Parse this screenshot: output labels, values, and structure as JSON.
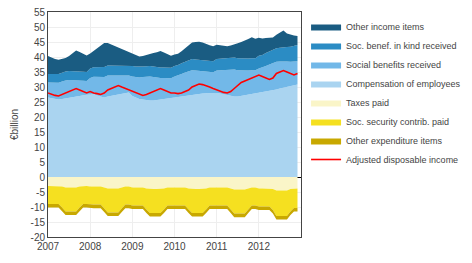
{
  "chart_data": {
    "type": "area",
    "stacked": true,
    "grid": true,
    "legend": "right",
    "ylabel": "€billion",
    "xlim": [
      2007,
      2013
    ],
    "xticks": [
      2007,
      2008,
      2009,
      2010,
      2011,
      2012
    ],
    "ylim": [
      -20,
      55
    ],
    "yticks": [
      -20,
      -15,
      -10,
      -5,
      0,
      5,
      10,
      15,
      20,
      25,
      30,
      35,
      40,
      45,
      50,
      55
    ],
    "x": [
      2007,
      2007.0833333333,
      2007.1666666667,
      2007.25,
      2007.3333333333,
      2007.4166666667,
      2007.5,
      2007.5833333333,
      2007.6666666667,
      2007.75,
      2007.8333333333,
      2007.9166666667,
      2008,
      2008.0833333333,
      2008.1666666667,
      2008.25,
      2008.3333333333,
      2008.4166666667,
      2008.5,
      2008.5833333333,
      2008.6666666667,
      2008.75,
      2008.8333333333,
      2008.9166666667,
      2009,
      2009.0833333333,
      2009.1666666667,
      2009.25,
      2009.3333333333,
      2009.4166666667,
      2009.5,
      2009.5833333333,
      2009.6666666667,
      2009.75,
      2009.8333333333,
      2009.9166666667,
      2010,
      2010.0833333333,
      2010.1666666667,
      2010.25,
      2010.3333333333,
      2010.4166666667,
      2010.5,
      2010.5833333333,
      2010.6666666667,
      2010.75,
      2010.8333333333,
      2010.9166666667,
      2011,
      2011.0833333333,
      2011.1666666667,
      2011.25,
      2011.3333333333,
      2011.4166666667,
      2011.5,
      2011.5833333333,
      2011.6666666667,
      2011.75,
      2011.8333333333,
      2011.9166666667,
      2012,
      2012.0833333333,
      2012.1666666667,
      2012.25,
      2012.3333333333,
      2012.4166666667,
      2012.5,
      2012.5833333333,
      2012.6666666667,
      2012.75,
      2012.8333333333,
      2012.9166666667
    ],
    "series": [
      {
        "name": "Compensation of employees",
        "color": "#aad4f0",
        "values": [
          26.5,
          26.2,
          26.0,
          25.8,
          26.0,
          26.2,
          26.5,
          26.8,
          27.0,
          27.2,
          27.3,
          27.4,
          27.5,
          27.6,
          27.2,
          26.8,
          26.5,
          26.8,
          27.0,
          27.2,
          27.5,
          27.8,
          28.0,
          28.2,
          27.0,
          26.5,
          26.0,
          25.8,
          25.6,
          25.5,
          25.5,
          25.6,
          25.8,
          26.0,
          26.2,
          26.3,
          26.5,
          26.6,
          26.8,
          27.0,
          27.2,
          27.4,
          27.5,
          27.6,
          27.8,
          27.9,
          28.0,
          28.1,
          28.0,
          27.8,
          27.5,
          27.2,
          27.0,
          26.8,
          26.8,
          27.0,
          27.2,
          27.5,
          27.8,
          28.0,
          28.2,
          28.3,
          28.5,
          28.7,
          29.0,
          29.2,
          29.5,
          29.8,
          30.0,
          30.2,
          30.5,
          30.8
        ]
      },
      {
        "name": "Social benefits received",
        "color": "#72b8e8",
        "values": [
          5.0,
          5.2,
          5.4,
          5.6,
          5.8,
          6.0,
          5.8,
          5.5,
          5.2,
          5.0,
          4.8,
          4.6,
          5.5,
          5.8,
          6.2,
          6.5,
          6.8,
          7.0,
          6.8,
          6.5,
          6.2,
          6.0,
          5.8,
          5.6,
          6.5,
          6.8,
          7.2,
          7.5,
          7.8,
          8.0,
          7.8,
          7.5,
          7.2,
          7.0,
          6.8,
          6.6,
          7.0,
          7.2,
          7.5,
          7.8,
          8.0,
          8.2,
          8.0,
          7.8,
          7.5,
          7.2,
          7.0,
          6.8,
          7.5,
          7.8,
          8.2,
          8.5,
          8.8,
          9.0,
          8.8,
          8.5,
          8.2,
          8.0,
          7.8,
          7.6,
          8.0,
          8.2,
          8.5,
          8.8,
          9.0,
          9.2,
          9.0,
          8.8,
          8.5,
          8.2,
          8.0,
          7.8
        ]
      },
      {
        "name": "Soc. benef. in kind received",
        "color": "#2b8cc4",
        "values": [
          2.8,
          2.8,
          2.9,
          2.9,
          3.0,
          3.0,
          3.0,
          3.0,
          3.0,
          3.0,
          3.0,
          3.0,
          3.2,
          3.2,
          3.3,
          3.3,
          3.4,
          3.4,
          3.4,
          3.4,
          3.4,
          3.4,
          3.4,
          3.4,
          3.5,
          3.5,
          3.5,
          3.5,
          3.5,
          3.5,
          3.5,
          3.5,
          3.5,
          3.5,
          3.5,
          3.5,
          3.5,
          3.5,
          3.6,
          3.6,
          3.7,
          3.7,
          3.7,
          3.7,
          3.7,
          3.7,
          3.7,
          3.7,
          3.8,
          3.8,
          3.9,
          3.9,
          4.0,
          4.0,
          4.0,
          4.0,
          4.0,
          4.0,
          4.0,
          4.0,
          4.2,
          4.2,
          4.3,
          4.3,
          4.5,
          4.5,
          4.6,
          4.7,
          4.8,
          5.0,
          5.2,
          5.4
        ]
      },
      {
        "name": "Other income items",
        "color": "#1a5c82",
        "values": [
          6.0,
          5.5,
          5.0,
          4.8,
          4.5,
          4.5,
          5.0,
          6.0,
          7.0,
          6.5,
          6.0,
          5.5,
          5.0,
          5.5,
          6.0,
          7.0,
          8.0,
          7.5,
          7.0,
          6.5,
          6.0,
          5.5,
          5.0,
          4.5,
          4.0,
          3.8,
          3.5,
          3.5,
          3.8,
          4.0,
          4.5,
          5.0,
          5.5,
          5.0,
          4.5,
          4.0,
          3.8,
          3.8,
          4.0,
          4.5,
          5.0,
          5.5,
          5.8,
          6.0,
          5.8,
          5.5,
          5.2,
          5.0,
          4.8,
          4.5,
          4.2,
          4.0,
          4.0,
          4.5,
          5.0,
          5.5,
          6.0,
          6.5,
          7.0,
          6.5,
          6.0,
          5.5,
          5.0,
          4.5,
          4.0,
          4.5,
          5.0,
          5.5,
          4.5,
          4.0,
          3.5,
          3.0
        ]
      },
      {
        "name": "Taxes paid",
        "color": "#faf5c8",
        "values": [
          -3.0,
          -3.0,
          -3.0,
          -3.0,
          -3.2,
          -3.5,
          -3.5,
          -3.5,
          -3.5,
          -3.2,
          -3.0,
          -3.0,
          -3.2,
          -3.2,
          -3.2,
          -3.2,
          -3.5,
          -3.8,
          -3.8,
          -3.8,
          -3.8,
          -3.5,
          -3.2,
          -3.2,
          -3.5,
          -3.5,
          -3.5,
          -3.5,
          -3.8,
          -4.0,
          -4.0,
          -4.0,
          -4.0,
          -3.8,
          -3.5,
          -3.5,
          -3.5,
          -3.5,
          -3.5,
          -3.5,
          -3.8,
          -4.0,
          -4.0,
          -4.0,
          -4.0,
          -3.8,
          -3.5,
          -3.5,
          -3.5,
          -3.5,
          -3.5,
          -3.5,
          -3.8,
          -4.2,
          -4.2,
          -4.2,
          -4.2,
          -3.8,
          -3.5,
          -3.5,
          -3.8,
          -3.8,
          -3.8,
          -3.8,
          -4.0,
          -4.5,
          -4.5,
          -4.5,
          -4.5,
          -4.0,
          -3.8,
          -3.8
        ]
      },
      {
        "name": "Soc. security contrib. paid",
        "color": "#f5e020",
        "values": [
          -6.0,
          -6.0,
          -6.0,
          -6.0,
          -7.0,
          -8.0,
          -8.0,
          -8.0,
          -8.0,
          -7.0,
          -6.0,
          -6.0,
          -6.0,
          -6.0,
          -6.0,
          -6.0,
          -7.0,
          -8.0,
          -8.0,
          -8.0,
          -8.0,
          -7.0,
          -6.0,
          -6.0,
          -6.0,
          -6.0,
          -6.0,
          -6.0,
          -7.0,
          -8.0,
          -8.0,
          -8.0,
          -8.0,
          -7.0,
          -6.0,
          -6.0,
          -6.0,
          -6.0,
          -6.0,
          -6.0,
          -7.0,
          -8.0,
          -8.0,
          -8.0,
          -8.0,
          -7.0,
          -6.0,
          -6.0,
          -6.0,
          -6.0,
          -6.0,
          -6.0,
          -7.0,
          -8.0,
          -8.0,
          -8.0,
          -8.0,
          -7.0,
          -6.0,
          -6.0,
          -6.0,
          -6.0,
          -6.0,
          -6.0,
          -7.0,
          -8.5,
          -8.5,
          -8.5,
          -8.5,
          -7.5,
          -6.5,
          -6.5
        ]
      },
      {
        "name": "Other expenditure items",
        "color": "#c8a800",
        "values": [
          -1.2,
          -1.2,
          -1.2,
          -1.2,
          -1.2,
          -1.2,
          -1.2,
          -1.2,
          -1.2,
          -1.2,
          -1.2,
          -1.2,
          -1.2,
          -1.2,
          -1.2,
          -1.2,
          -1.2,
          -1.2,
          -1.2,
          -1.2,
          -1.2,
          -1.2,
          -1.2,
          -1.2,
          -1.2,
          -1.2,
          -1.2,
          -1.2,
          -1.2,
          -1.2,
          -1.2,
          -1.2,
          -1.2,
          -1.2,
          -1.2,
          -1.2,
          -1.2,
          -1.2,
          -1.2,
          -1.2,
          -1.2,
          -1.2,
          -1.2,
          -1.2,
          -1.2,
          -1.2,
          -1.2,
          -1.2,
          -1.2,
          -1.2,
          -1.2,
          -1.2,
          -1.2,
          -1.2,
          -1.2,
          -1.2,
          -1.2,
          -1.2,
          -1.2,
          -1.2,
          -1.2,
          -1.2,
          -1.2,
          -1.2,
          -1.2,
          -1.2,
          -1.2,
          -1.2,
          -1.2,
          -1.2,
          -1.2,
          -1.2
        ]
      },
      {
        "name": "Adjusted disposable income",
        "type": "line",
        "color": "red",
        "values": [
          28.0,
          27.5,
          27.2,
          27.0,
          27.5,
          28.0,
          28.5,
          29.0,
          29.5,
          29.0,
          28.5,
          28.0,
          28.5,
          28.0,
          27.8,
          27.5,
          28.0,
          29.0,
          29.5,
          30.0,
          30.5,
          30.0,
          29.5,
          29.0,
          28.5,
          28.0,
          27.5,
          27.2,
          27.5,
          28.0,
          28.5,
          29.0,
          29.5,
          29.0,
          28.5,
          28.0,
          28.0,
          27.8,
          28.0,
          28.5,
          29.0,
          30.0,
          30.5,
          31.0,
          30.8,
          30.5,
          30.0,
          29.5,
          29.0,
          28.5,
          28.2,
          28.0,
          28.5,
          29.5,
          30.5,
          31.5,
          32.0,
          32.5,
          33.0,
          33.5,
          34.0,
          33.5,
          33.0,
          32.5,
          33.0,
          34.5,
          35.0,
          35.5,
          35.0,
          34.5,
          34.0,
          34.5
        ]
      }
    ]
  }
}
